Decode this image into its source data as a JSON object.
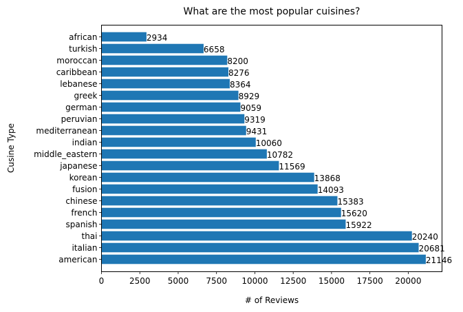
{
  "chart_data": {
    "type": "bar",
    "orientation": "horizontal",
    "title": "What are the most popular cuisines?",
    "xlabel": "# of Reviews",
    "ylabel": "Cusine Type",
    "xlim": [
      0,
      22203
    ],
    "xticks": [
      0,
      2500,
      5000,
      7500,
      10000,
      12500,
      15000,
      17500,
      20000
    ],
    "grid": false,
    "bar_color": "#1f77b4",
    "categories": [
      "american",
      "italian",
      "thai",
      "spanish",
      "french",
      "chinese",
      "fusion",
      "korean",
      "japanese",
      "middle_eastern",
      "indian",
      "mediterranean",
      "peruvian",
      "german",
      "greek",
      "lebanese",
      "caribbean",
      "moroccan",
      "turkish",
      "african"
    ],
    "values": [
      21146,
      20681,
      20240,
      15922,
      15620,
      15383,
      14093,
      13868,
      11569,
      10782,
      10060,
      9431,
      9319,
      9059,
      8929,
      8364,
      8276,
      8200,
      6658,
      2934
    ]
  }
}
